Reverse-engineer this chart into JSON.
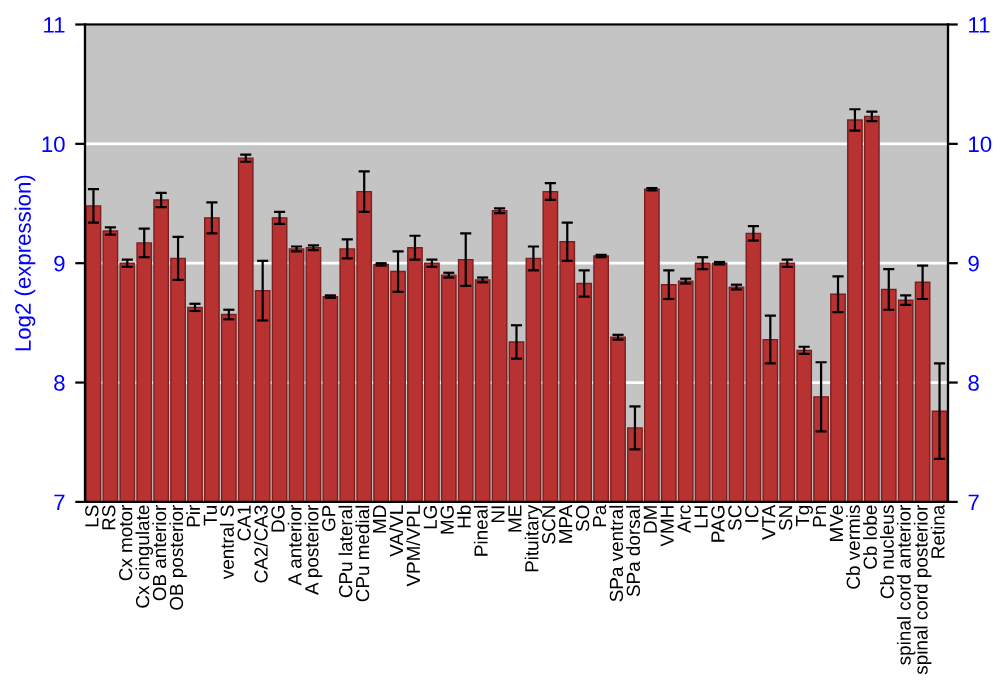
{
  "chart_data": {
    "type": "bar",
    "ylabel": "Log2 (expression)",
    "categories": [
      "LS",
      "RS",
      "Cx motor",
      "Cx cingulate",
      "OB anterior",
      "OB posterior",
      "Pir",
      "Tu",
      "ventral S",
      "CA1",
      "CA2/CA3",
      "DG",
      "A anterior",
      "A posterior",
      "GP",
      "CPu lateral",
      "CPu medial",
      "MD",
      "VA/VL",
      "VPM/VPL",
      "LG",
      "MG",
      "Hb",
      "Pineal",
      "NI",
      "ME",
      "Pituitary",
      "SCN",
      "MPA",
      "SO",
      "Pa",
      "SPa ventral",
      "SPa dorsal",
      "DM",
      "VMH",
      "Arc",
      "LH",
      "PAG",
      "SC",
      "IC",
      "VTA",
      "SN",
      "Tg",
      "Pn",
      "MVe",
      "Cb vermis",
      "Cb lobe",
      "Cb nucleus",
      "spinal cord anterior",
      "spinal cord posterior",
      "Retina"
    ],
    "values": [
      9.48,
      9.27,
      9.0,
      9.17,
      9.53,
      9.04,
      8.63,
      9.38,
      8.57,
      9.88,
      8.77,
      9.38,
      9.12,
      9.13,
      8.72,
      9.12,
      9.6,
      8.99,
      8.93,
      9.13,
      9.0,
      8.9,
      9.03,
      8.86,
      9.44,
      8.34,
      9.04,
      9.6,
      9.18,
      8.83,
      9.06,
      8.38,
      7.62,
      9.62,
      8.82,
      8.85,
      9.0,
      9.0,
      8.8,
      9.25,
      8.36,
      9.0,
      8.27,
      7.88,
      8.74,
      10.2,
      10.23,
      8.78,
      8.69,
      8.84,
      7.76
    ],
    "errors": [
      0.14,
      0.03,
      0.03,
      0.12,
      0.06,
      0.18,
      0.03,
      0.13,
      0.04,
      0.03,
      0.25,
      0.05,
      0.02,
      0.02,
      0.01,
      0.08,
      0.17,
      0.01,
      0.17,
      0.1,
      0.03,
      0.02,
      0.22,
      0.02,
      0.02,
      0.14,
      0.1,
      0.07,
      0.16,
      0.11,
      0.01,
      0.02,
      0.18,
      0.01,
      0.12,
      0.02,
      0.05,
      0.01,
      0.02,
      0.06,
      0.2,
      0.03,
      0.03,
      0.29,
      0.15,
      0.09,
      0.04,
      0.17,
      0.04,
      0.14,
      0.4
    ],
    "color": "#b83232",
    "ylim": [
      7,
      11
    ],
    "yticks": [
      7,
      8,
      9,
      10,
      11
    ],
    "y2lim": [
      7,
      11
    ],
    "y2ticks": [
      7,
      8,
      9,
      10,
      11
    ],
    "grid": "y"
  }
}
